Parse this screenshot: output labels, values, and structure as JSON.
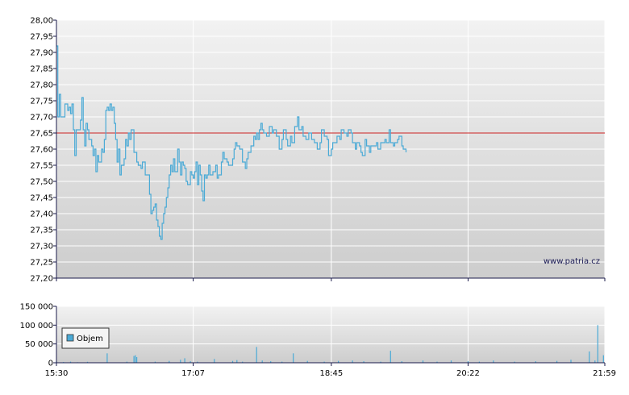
{
  "watermark": "www.patria.cz",
  "colors": {
    "price_line": "#4aaad6",
    "reference_line": "#cc2222",
    "volume_bars": "#4aaad6",
    "background_top": "#f2f2f2",
    "background_bottom": "#cdcdcd",
    "grid": "#ffffff",
    "axis": "#1a1a4a"
  },
  "chart_data": [
    {
      "type": "line",
      "name": "price",
      "ylim": [
        27.2,
        28.0
      ],
      "y_ticks": [
        "27,20",
        "27,25",
        "27,30",
        "27,35",
        "27,40",
        "27,45",
        "27,50",
        "27,55",
        "27,60",
        "27,65",
        "27,70",
        "27,75",
        "27,80",
        "27,85",
        "27,90",
        "27,95",
        "28,00"
      ],
      "x_ticks": [
        "15:30",
        "17:07",
        "18:45",
        "20:22",
        "21:59"
      ],
      "xlim": [
        "15:30",
        "21:59"
      ],
      "reference_line": 27.65,
      "grid": true,
      "points": [
        [
          "15:30",
          27.92
        ],
        [
          "15:31",
          27.7
        ],
        [
          "15:32",
          27.77
        ],
        [
          "15:33",
          27.7
        ],
        [
          "15:35",
          27.7
        ],
        [
          "15:36",
          27.74
        ],
        [
          "15:38",
          27.72
        ],
        [
          "15:39",
          27.73
        ],
        [
          "15:40",
          27.71
        ],
        [
          "15:41",
          27.74
        ],
        [
          "15:42",
          27.66
        ],
        [
          "15:43",
          27.58
        ],
        [
          "15:44",
          27.66
        ],
        [
          "15:46",
          27.66
        ],
        [
          "15:47",
          27.69
        ],
        [
          "15:48",
          27.76
        ],
        [
          "15:49",
          27.66
        ],
        [
          "15:50",
          27.61
        ],
        [
          "15:51",
          27.68
        ],
        [
          "15:52",
          27.66
        ],
        [
          "15:53",
          27.63
        ],
        [
          "15:55",
          27.61
        ],
        [
          "15:56",
          27.58
        ],
        [
          "15:57",
          27.6
        ],
        [
          "15:58",
          27.53
        ],
        [
          "15:59",
          27.58
        ],
        [
          "16:00",
          27.56
        ],
        [
          "16:02",
          27.6
        ],
        [
          "16:03",
          27.59
        ],
        [
          "16:04",
          27.63
        ],
        [
          "16:05",
          27.72
        ],
        [
          "16:06",
          27.73
        ],
        [
          "16:07",
          27.72
        ],
        [
          "16:08",
          27.74
        ],
        [
          "16:09",
          27.72
        ],
        [
          "16:10",
          27.73
        ],
        [
          "16:11",
          27.68
        ],
        [
          "16:12",
          27.63
        ],
        [
          "16:13",
          27.56
        ],
        [
          "16:14",
          27.6
        ],
        [
          "16:15",
          27.52
        ],
        [
          "16:16",
          27.55
        ],
        [
          "16:17",
          27.55
        ],
        [
          "16:18",
          27.57
        ],
        [
          "16:19",
          27.63
        ],
        [
          "16:20",
          27.61
        ],
        [
          "16:21",
          27.65
        ],
        [
          "16:22",
          27.63
        ],
        [
          "16:23",
          27.66
        ],
        [
          "16:25",
          27.59
        ],
        [
          "16:27",
          27.56
        ],
        [
          "16:28",
          27.55
        ],
        [
          "16:30",
          27.54
        ],
        [
          "16:31",
          27.56
        ],
        [
          "16:32",
          27.56
        ],
        [
          "16:33",
          27.52
        ],
        [
          "16:35",
          27.52
        ],
        [
          "16:36",
          27.46
        ],
        [
          "16:37",
          27.4
        ],
        [
          "16:38",
          27.41
        ],
        [
          "16:39",
          27.42
        ],
        [
          "16:40",
          27.43
        ],
        [
          "16:41",
          27.38
        ],
        [
          "16:42",
          27.36
        ],
        [
          "16:43",
          27.33
        ],
        [
          "16:44",
          27.32
        ],
        [
          "16:45",
          27.37
        ],
        [
          "16:46",
          27.4
        ],
        [
          "16:47",
          27.42
        ],
        [
          "16:48",
          27.45
        ],
        [
          "16:49",
          27.48
        ],
        [
          "16:50",
          27.52
        ],
        [
          "16:51",
          27.55
        ],
        [
          "16:52",
          27.53
        ],
        [
          "16:53",
          27.57
        ],
        [
          "16:54",
          27.53
        ],
        [
          "16:55",
          27.53
        ],
        [
          "16:56",
          27.6
        ],
        [
          "16:57",
          27.56
        ],
        [
          "16:58",
          27.52
        ],
        [
          "16:59",
          27.56
        ],
        [
          "17:00",
          27.55
        ],
        [
          "17:01",
          27.54
        ],
        [
          "17:02",
          27.5
        ],
        [
          "17:03",
          27.49
        ],
        [
          "17:04",
          27.49
        ],
        [
          "17:05",
          27.53
        ],
        [
          "17:06",
          27.52
        ],
        [
          "17:07",
          27.51
        ],
        [
          "17:08",
          27.53
        ],
        [
          "17:09",
          27.56
        ],
        [
          "17:10",
          27.49
        ],
        [
          "17:11",
          27.55
        ],
        [
          "17:12",
          27.52
        ],
        [
          "17:13",
          27.47
        ],
        [
          "17:14",
          27.44
        ],
        [
          "17:15",
          27.52
        ],
        [
          "17:16",
          27.51
        ],
        [
          "17:17",
          27.52
        ],
        [
          "17:18",
          27.55
        ],
        [
          "17:19",
          27.52
        ],
        [
          "17:20",
          27.52
        ],
        [
          "17:21",
          27.53
        ],
        [
          "17:22",
          27.53
        ],
        [
          "17:23",
          27.55
        ],
        [
          "17:24",
          27.51
        ],
        [
          "17:25",
          27.52
        ],
        [
          "17:26",
          27.52
        ],
        [
          "17:27",
          27.56
        ],
        [
          "17:28",
          27.59
        ],
        [
          "17:29",
          27.57
        ],
        [
          "17:31",
          27.56
        ],
        [
          "17:32",
          27.55
        ],
        [
          "17:34",
          27.55
        ],
        [
          "17:35",
          27.57
        ],
        [
          "17:36",
          27.6
        ],
        [
          "17:37",
          27.62
        ],
        [
          "17:38",
          27.61
        ],
        [
          "17:40",
          27.6
        ],
        [
          "17:42",
          27.56
        ],
        [
          "17:44",
          27.54
        ],
        [
          "17:45",
          27.57
        ],
        [
          "17:46",
          27.59
        ],
        [
          "17:48",
          27.61
        ],
        [
          "17:50",
          27.64
        ],
        [
          "17:51",
          27.63
        ],
        [
          "17:52",
          27.65
        ],
        [
          "17:53",
          27.63
        ],
        [
          "17:54",
          27.66
        ],
        [
          "17:55",
          27.68
        ],
        [
          "17:56",
          27.66
        ],
        [
          "17:57",
          27.65
        ],
        [
          "17:59",
          27.64
        ],
        [
          "18:01",
          27.67
        ],
        [
          "18:03",
          27.65
        ],
        [
          "18:04",
          27.66
        ],
        [
          "18:06",
          27.64
        ],
        [
          "18:08",
          27.6
        ],
        [
          "18:10",
          27.63
        ],
        [
          "18:11",
          27.66
        ],
        [
          "18:13",
          27.63
        ],
        [
          "18:14",
          27.61
        ],
        [
          "18:16",
          27.64
        ],
        [
          "18:17",
          27.62
        ],
        [
          "18:19",
          27.67
        ],
        [
          "18:21",
          27.7
        ],
        [
          "18:22",
          27.66
        ],
        [
          "18:24",
          27.67
        ],
        [
          "18:25",
          27.64
        ],
        [
          "18:27",
          27.63
        ],
        [
          "18:29",
          27.65
        ],
        [
          "18:31",
          27.63
        ],
        [
          "18:33",
          27.62
        ],
        [
          "18:35",
          27.6
        ],
        [
          "18:37",
          27.62
        ],
        [
          "18:38",
          27.66
        ],
        [
          "18:40",
          27.64
        ],
        [
          "18:42",
          27.63
        ],
        [
          "18:43",
          27.58
        ],
        [
          "18:45",
          27.6
        ],
        [
          "18:46",
          27.62
        ],
        [
          "18:48",
          27.62
        ],
        [
          "18:49",
          27.64
        ],
        [
          "18:51",
          27.63
        ],
        [
          "18:52",
          27.66
        ],
        [
          "18:54",
          27.65
        ],
        [
          "18:56",
          27.64
        ],
        [
          "18:57",
          27.66
        ],
        [
          "18:59",
          27.65
        ],
        [
          "19:00",
          27.62
        ],
        [
          "19:02",
          27.6
        ],
        [
          "19:03",
          27.62
        ],
        [
          "19:05",
          27.61
        ],
        [
          "19:06",
          27.59
        ],
        [
          "19:07",
          27.58
        ],
        [
          "19:09",
          27.63
        ],
        [
          "19:10",
          27.61
        ],
        [
          "19:12",
          27.59
        ],
        [
          "19:13",
          27.61
        ],
        [
          "19:15",
          27.61
        ],
        [
          "19:17",
          27.62
        ],
        [
          "19:18",
          27.6
        ],
        [
          "19:20",
          27.62
        ],
        [
          "19:21",
          27.62
        ],
        [
          "19:23",
          27.63
        ],
        [
          "19:24",
          27.62
        ],
        [
          "19:26",
          27.66
        ],
        [
          "19:27",
          27.62
        ],
        [
          "19:29",
          27.61
        ],
        [
          "19:30",
          27.62
        ],
        [
          "19:32",
          27.63
        ],
        [
          "19:33",
          27.64
        ],
        [
          "19:35",
          27.61
        ],
        [
          "19:36",
          27.6
        ],
        [
          "19:38",
          27.59
        ]
      ]
    },
    {
      "type": "bar",
      "name": "volume",
      "legend": "Objem",
      "ylim": [
        0,
        150000
      ],
      "y_ticks": [
        "0",
        "50 000",
        "100 000",
        "150 000"
      ],
      "x_ticks": [
        "15:30",
        "17:07",
        "18:45",
        "20:22",
        "21:59"
      ],
      "grid": true,
      "points": [
        [
          "15:30",
          4000
        ],
        [
          "15:35",
          2000
        ],
        [
          "15:40",
          3000
        ],
        [
          "15:45",
          1500
        ],
        [
          "15:52",
          2500
        ],
        [
          "16:00",
          1000
        ],
        [
          "16:06",
          25000
        ],
        [
          "16:20",
          3000
        ],
        [
          "16:25",
          18000
        ],
        [
          "16:26",
          20000
        ],
        [
          "16:27",
          15000
        ],
        [
          "16:40",
          3000
        ],
        [
          "16:50",
          5000
        ],
        [
          "16:58",
          8000
        ],
        [
          "17:01",
          12000
        ],
        [
          "17:05",
          4000
        ],
        [
          "17:10",
          3000
        ],
        [
          "17:22",
          10000
        ],
        [
          "17:35",
          5000
        ],
        [
          "17:38",
          7000
        ],
        [
          "17:42",
          3000
        ],
        [
          "17:52",
          42000
        ],
        [
          "17:56",
          6000
        ],
        [
          "18:02",
          4000
        ],
        [
          "18:10",
          3000
        ],
        [
          "18:18",
          25000
        ],
        [
          "18:28",
          5000
        ],
        [
          "18:40",
          3000
        ],
        [
          "18:50",
          5000
        ],
        [
          "19:00",
          6000
        ],
        [
          "19:08",
          4000
        ],
        [
          "19:20",
          3000
        ],
        [
          "19:27",
          32000
        ],
        [
          "19:35",
          4000
        ],
        [
          "19:50",
          6000
        ],
        [
          "20:00",
          3000
        ],
        [
          "20:10",
          6000
        ],
        [
          "20:22",
          4000
        ],
        [
          "20:30",
          3000
        ],
        [
          "20:40",
          6000
        ],
        [
          "20:55",
          3000
        ],
        [
          "21:10",
          4000
        ],
        [
          "21:25",
          5000
        ],
        [
          "21:35",
          8000
        ],
        [
          "21:48",
          30000
        ],
        [
          "21:52",
          6000
        ],
        [
          "21:54",
          100000
        ],
        [
          "21:58",
          20000
        ]
      ]
    }
  ]
}
